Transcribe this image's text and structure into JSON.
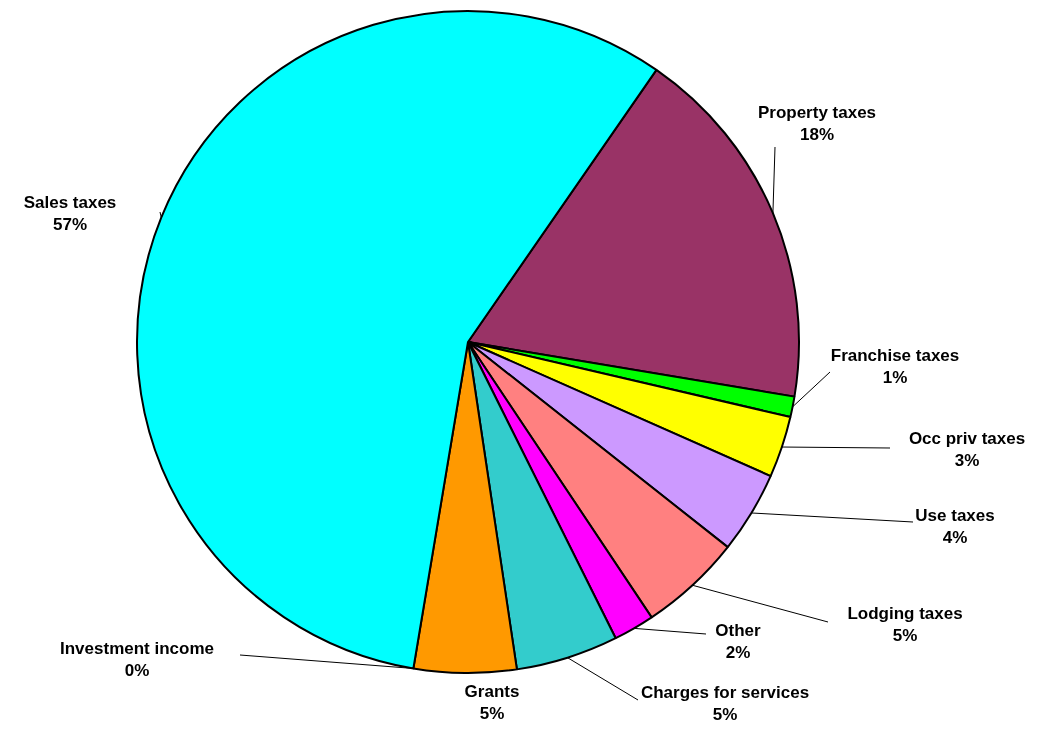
{
  "chart_data": {
    "type": "pie",
    "categories": [
      "Property taxes",
      "Franchise taxes",
      "Occ priv taxes",
      "Use taxes",
      "Lodging taxes",
      "Other",
      "Charges for services",
      "Grants",
      "Investment income",
      "Sales taxes"
    ],
    "values": [
      18,
      1,
      3,
      4,
      5,
      2,
      5,
      5,
      0,
      57
    ],
    "value_labels": [
      "18%",
      "1%",
      "3%",
      "4%",
      "5%",
      "2%",
      "5%",
      "5%",
      "0%",
      "57%"
    ],
    "colors": [
      "#993366",
      "#00ff00",
      "#ffff00",
      "#cc99ff",
      "#ff8080",
      "#ff00ff",
      "#33cccc",
      "#ff9900",
      "#000080",
      "#00ffff"
    ],
    "legend": false
  }
}
